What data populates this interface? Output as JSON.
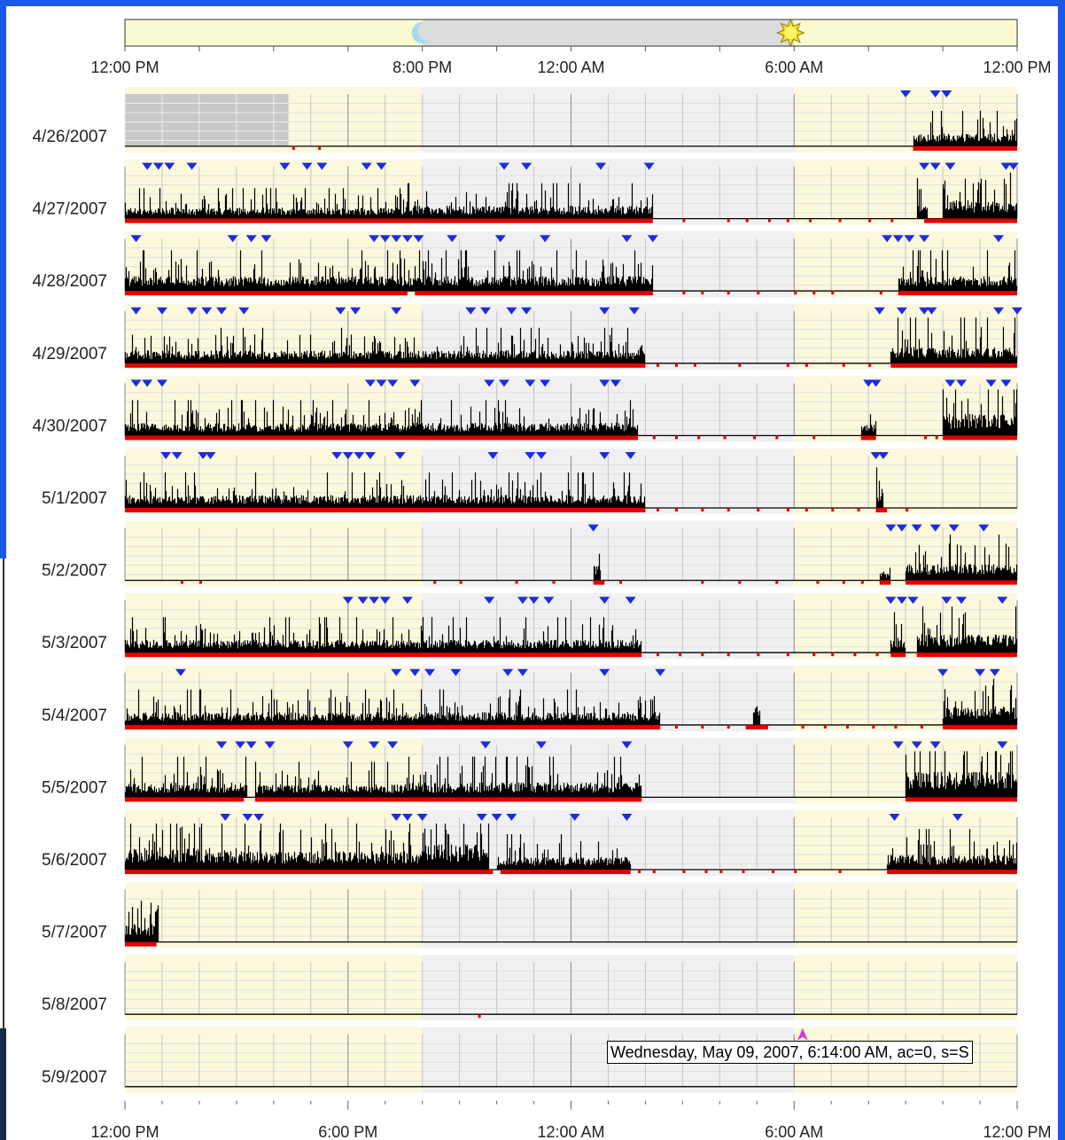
{
  "chart_data": {
    "type": "actogram",
    "top_axis": {
      "tick_labels": [
        "12:00 PM",
        "8:00 PM",
        "12:00 AM",
        "6:00 AM",
        "12:00 PM"
      ],
      "tick_hours": [
        0,
        8,
        12,
        18,
        24
      ],
      "sunset_hour": 8,
      "sunrise_hour": 18,
      "icons": [
        "moon-icon",
        "sun-icon"
      ]
    },
    "bottom_axis": {
      "tick_labels": [
        "12:00 PM",
        "6:00 PM",
        "12:00 AM",
        "6:00 AM",
        "12:00 PM"
      ],
      "tick_hours": [
        0,
        6,
        12,
        18,
        24
      ]
    },
    "x_range_hours": [
      0,
      24
    ],
    "night_shading_hours": [
      8,
      18
    ],
    "colors": {
      "day_bg": "#fbf8dc",
      "night_bg": "#f0f0f2",
      "day_bar": "#fafad2",
      "night_bar": "#dcdcdc",
      "activity": "#000000",
      "wear_bar": "#e00000",
      "marker": "#1c2ce0",
      "event_marker": "#d838d8",
      "grid": "#999999"
    },
    "days": [
      {
        "label": "4/26/2007",
        "activity": [
          [
            21.2,
            24,
            0.35
          ]
        ],
        "wear": [
          [
            21.2,
            24
          ]
        ],
        "ticks": [
          4.5,
          5.2
        ],
        "markers": [
          21.0,
          21.8,
          22.1
        ],
        "no_data": [
          0,
          4.4
        ]
      },
      {
        "label": "4/27/2007",
        "activity": [
          [
            0,
            7.5,
            0.3
          ],
          [
            7.5,
            14.2,
            0.35
          ],
          [
            21.3,
            21.6,
            0.4
          ],
          [
            22.0,
            24,
            0.5
          ]
        ],
        "wear": [
          [
            0,
            14.2
          ],
          [
            21.5,
            24
          ]
        ],
        "ticks": [
          15.0,
          16.2,
          16.7,
          17.3,
          17.8,
          18.4,
          19.2,
          20.0,
          20.6
        ],
        "markers": [
          0.6,
          0.9,
          1.2,
          1.8,
          4.3,
          4.9,
          5.3,
          6.5,
          6.9,
          10.2,
          10.8,
          12.8,
          14.1,
          21.5,
          21.8,
          22.2,
          23.7,
          23.9
        ]
      },
      {
        "label": "4/28/2007",
        "activity": [
          [
            0,
            7.7,
            0.4
          ],
          [
            7.7,
            14.2,
            0.4
          ],
          [
            20.8,
            24,
            0.4
          ]
        ],
        "wear": [
          [
            0,
            7.6
          ],
          [
            7.8,
            14.2
          ],
          [
            20.8,
            24
          ]
        ],
        "ticks": [
          15.0,
          15.5,
          16.2,
          17.0,
          18.0,
          18.5,
          19.0,
          20.3
        ],
        "markers": [
          0.3,
          2.9,
          3.4,
          3.8,
          6.7,
          7.0,
          7.3,
          7.6,
          7.9,
          8.8,
          10.1,
          11.3,
          13.5,
          14.2,
          20.5,
          20.8,
          21.1,
          21.5,
          23.5
        ]
      },
      {
        "label": "4/29/2007",
        "activity": [
          [
            0,
            7.5,
            0.35
          ],
          [
            7.5,
            13.8,
            0.35
          ],
          [
            13.8,
            14.0,
            0.6
          ],
          [
            20.6,
            24,
            0.45
          ]
        ],
        "wear": [
          [
            0,
            14.0
          ],
          [
            20.6,
            24
          ]
        ],
        "ticks": [
          14.3,
          14.8,
          15.3,
          16.5,
          17.8,
          18.3,
          19.3,
          20.0
        ],
        "markers": [
          0.3,
          1.0,
          1.8,
          2.2,
          2.6,
          3.2,
          5.8,
          6.2,
          7.3,
          9.3,
          9.7,
          10.4,
          10.8,
          12.9,
          13.7,
          20.3,
          20.9,
          21.5,
          21.7,
          23.5,
          24.0
        ]
      },
      {
        "label": "4/30/2007",
        "activity": [
          [
            0,
            7.6,
            0.35
          ],
          [
            7.6,
            13.8,
            0.35
          ],
          [
            19.8,
            20.2,
            0.3
          ],
          [
            22.0,
            24,
            0.6
          ]
        ],
        "wear": [
          [
            0,
            13.8
          ],
          [
            19.8,
            20.2
          ],
          [
            22.0,
            24
          ]
        ],
        "ticks": [
          14.2,
          14.8,
          15.4,
          16.1,
          16.9,
          17.5,
          18.5,
          21.5,
          21.8
        ],
        "markers": [
          0.3,
          0.6,
          1.0,
          6.6,
          6.9,
          7.2,
          7.8,
          9.8,
          10.2,
          10.9,
          11.3,
          12.9,
          13.2,
          20.0,
          20.2,
          22.2,
          22.5,
          23.3,
          23.7
        ]
      },
      {
        "label": "5/1/2007",
        "activity": [
          [
            0,
            7.5,
            0.35
          ],
          [
            7.5,
            14.0,
            0.35
          ],
          [
            20.2,
            20.4,
            0.4
          ]
        ],
        "wear": [
          [
            0,
            14.0
          ],
          [
            20.2,
            20.5
          ]
        ],
        "ticks": [
          14.3,
          14.8,
          15.5,
          16.2,
          17.0,
          17.8,
          18.3,
          19.0,
          19.7,
          21.0
        ],
        "markers": [
          1.1,
          1.4,
          2.1,
          2.3,
          5.7,
          6.0,
          6.3,
          6.6,
          7.4,
          9.9,
          10.9,
          11.2,
          12.9,
          13.6,
          20.2,
          20.4
        ]
      },
      {
        "label": "5/2/2007",
        "activity": [
          [
            12.6,
            12.8,
            0.4
          ],
          [
            20.3,
            20.6,
            0.25
          ],
          [
            21.0,
            24,
            0.45
          ]
        ],
        "wear": [
          [
            12.6,
            12.9
          ],
          [
            20.3,
            20.6
          ],
          [
            21.0,
            24
          ]
        ],
        "ticks": [
          1.5,
          2.0,
          8.3,
          9.0,
          10.5,
          11.5,
          13.3,
          15.5,
          16.5,
          17.5,
          18.6,
          19.3,
          19.8
        ],
        "markers": [
          12.6,
          20.6,
          20.9,
          21.3,
          21.8,
          22.3,
          23.1
        ]
      },
      {
        "label": "5/3/2007",
        "activity": [
          [
            0,
            7.5,
            0.35
          ],
          [
            7.5,
            13.9,
            0.35
          ],
          [
            20.6,
            21.0,
            0.4
          ],
          [
            21.3,
            24,
            0.5
          ]
        ],
        "wear": [
          [
            0,
            13.9
          ],
          [
            20.6,
            21.0
          ],
          [
            21.3,
            24
          ]
        ],
        "ticks": [
          14.3,
          14.9,
          15.5,
          16.2,
          17.0,
          17.8,
          18.5,
          19.0,
          19.6,
          20.2
        ],
        "markers": [
          6.0,
          6.4,
          6.7,
          7.0,
          7.6,
          9.8,
          10.7,
          11.0,
          11.4,
          12.9,
          13.6,
          20.6,
          20.9,
          21.2,
          22.1,
          22.5,
          23.6
        ]
      },
      {
        "label": "5/4/2007",
        "activity": [
          [
            0,
            7.5,
            0.35
          ],
          [
            7.5,
            14.4,
            0.35
          ],
          [
            16.9,
            17.1,
            0.6
          ],
          [
            22.0,
            24,
            0.5
          ]
        ],
        "wear": [
          [
            0,
            14.4
          ],
          [
            16.7,
            17.3
          ],
          [
            22.0,
            24
          ]
        ],
        "ticks": [
          14.8,
          15.5,
          16.2,
          18.2,
          18.8,
          19.4,
          20.1,
          20.7,
          21.4
        ],
        "markers": [
          1.5,
          7.3,
          7.8,
          8.2,
          8.9,
          10.3,
          10.7,
          12.9,
          14.4,
          22.0,
          23.0,
          23.4
        ]
      },
      {
        "label": "5/5/2007",
        "activity": [
          [
            0,
            3.3,
            0.4
          ],
          [
            3.5,
            7.5,
            0.35
          ],
          [
            7.5,
            13.9,
            0.4
          ],
          [
            21.0,
            24,
            0.7
          ]
        ],
        "wear": [
          [
            0,
            3.2
          ],
          [
            3.5,
            13.9
          ],
          [
            21.0,
            24
          ]
        ],
        "ticks": [],
        "markers": [
          2.6,
          3.1,
          3.4,
          3.9,
          6.0,
          6.7,
          7.2,
          9.7,
          11.2,
          13.5,
          20.8,
          21.3,
          21.8,
          23.6
        ]
      },
      {
        "label": "5/6/2007",
        "activity": [
          [
            0,
            3.0,
            0.6
          ],
          [
            3.0,
            6.0,
            0.5
          ],
          [
            6.0,
            8.0,
            0.5
          ],
          [
            8.0,
            9.8,
            0.7
          ],
          [
            10.0,
            13.6,
            0.35
          ],
          [
            20.5,
            24,
            0.4
          ]
        ],
        "wear": [
          [
            0,
            9.9
          ],
          [
            10.1,
            13.6
          ],
          [
            20.5,
            24
          ]
        ],
        "ticks": [
          13.8,
          14.2,
          15.0,
          15.6,
          16.0,
          16.6,
          17.4,
          18.0,
          19.2
        ],
        "markers": [
          2.7,
          3.3,
          3.6,
          7.3,
          7.6,
          8.0,
          9.6,
          10.0,
          10.4,
          12.1,
          13.5,
          20.7,
          22.4
        ]
      },
      {
        "label": "5/7/2007",
        "activity": [
          [
            0,
            0.8,
            0.5
          ],
          [
            0.8,
            0.9,
            1.0
          ]
        ],
        "wear": [
          [
            0,
            0.85
          ]
        ],
        "ticks": [],
        "markers": []
      },
      {
        "label": "5/8/2007",
        "activity": [],
        "wear": [],
        "ticks": [
          9.5
        ],
        "markers": []
      },
      {
        "label": "5/9/2007",
        "activity": [],
        "wear": [],
        "ticks": [],
        "markers": [],
        "event_hour": 18.23
      }
    ],
    "tooltip": "Wednesday, May 09, 2007, 6:14:00 AM, ac=0, s=S"
  }
}
